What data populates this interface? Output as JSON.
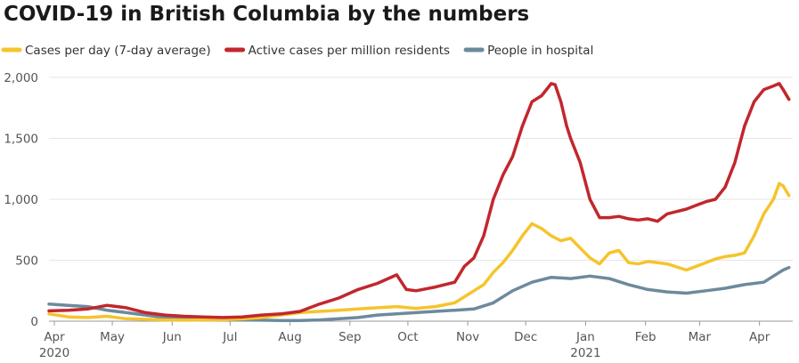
{
  "chart_data": {
    "type": "line",
    "title": "COVID-19 in British Columbia by the numbers",
    "ylim": [
      0,
      2000
    ],
    "y_ticks": [
      0,
      500,
      1000,
      1500,
      2000
    ],
    "y_tick_labels": [
      "0",
      "500",
      "1,000",
      "1,500",
      "2,000"
    ],
    "x_ticks": [
      {
        "label": "Apr",
        "sublabel": "2020",
        "day": 0
      },
      {
        "label": "May",
        "sublabel": "",
        "day": 30
      },
      {
        "label": "Jun",
        "sublabel": "",
        "day": 61
      },
      {
        "label": "Jul",
        "sublabel": "",
        "day": 91
      },
      {
        "label": "Aug",
        "sublabel": "",
        "day": 122
      },
      {
        "label": "Sep",
        "sublabel": "",
        "day": 153
      },
      {
        "label": "Oct",
        "sublabel": "",
        "day": 183
      },
      {
        "label": "Nov",
        "sublabel": "",
        "day": 214
      },
      {
        "label": "Dec",
        "sublabel": "",
        "day": 244
      },
      {
        "label": "Jan",
        "sublabel": "2021",
        "day": 275
      },
      {
        "label": "Feb",
        "sublabel": "",
        "day": 306
      },
      {
        "label": "Mar",
        "sublabel": "",
        "day": 334
      },
      {
        "label": "Apr",
        "sublabel": "",
        "day": 365
      }
    ],
    "x_domain": [
      0,
      385
    ],
    "grid": true,
    "legend_position": "top-left",
    "series": [
      {
        "name": "Cases per day (7-day average)",
        "color": "#f5c42c",
        "x": [
          0,
          10,
          20,
          30,
          40,
          50,
          60,
          70,
          80,
          90,
          100,
          110,
          120,
          130,
          140,
          150,
          160,
          170,
          180,
          190,
          200,
          210,
          220,
          225,
          230,
          235,
          240,
          245,
          250,
          255,
          260,
          265,
          270,
          275,
          280,
          285,
          290,
          295,
          300,
          305,
          310,
          320,
          330,
          335,
          340,
          345,
          350,
          355,
          360,
          365,
          370,
          375,
          378,
          380,
          383
        ],
        "values": [
          60,
          35,
          30,
          40,
          20,
          15,
          10,
          8,
          10,
          12,
          18,
          30,
          50,
          70,
          80,
          90,
          100,
          110,
          120,
          105,
          120,
          150,
          250,
          300,
          400,
          480,
          580,
          700,
          800,
          760,
          700,
          660,
          680,
          600,
          520,
          470,
          560,
          580,
          480,
          470,
          490,
          470,
          420,
          450,
          480,
          510,
          530,
          540,
          560,
          700,
          880,
          1000,
          1130,
          1110,
          1030
        ]
      },
      {
        "name": "Active cases per million residents",
        "color": "#c1272d",
        "x": [
          0,
          10,
          20,
          30,
          40,
          50,
          60,
          70,
          80,
          90,
          100,
          110,
          120,
          130,
          140,
          150,
          160,
          170,
          180,
          185,
          190,
          200,
          210,
          215,
          220,
          225,
          230,
          235,
          240,
          245,
          250,
          255,
          260,
          262,
          265,
          268,
          270,
          275,
          280,
          285,
          290,
          295,
          300,
          305,
          310,
          315,
          320,
          325,
          330,
          335,
          340,
          345,
          350,
          355,
          360,
          365,
          370,
          375,
          378,
          380,
          383
        ],
        "values": [
          85,
          90,
          100,
          130,
          110,
          70,
          50,
          40,
          35,
          30,
          35,
          50,
          60,
          80,
          140,
          190,
          260,
          310,
          380,
          260,
          250,
          280,
          320,
          450,
          520,
          700,
          1000,
          1200,
          1350,
          1600,
          1800,
          1850,
          1950,
          1940,
          1800,
          1600,
          1500,
          1300,
          1000,
          850,
          850,
          860,
          840,
          830,
          840,
          820,
          880,
          900,
          920,
          950,
          980,
          1000,
          1100,
          1300,
          1600,
          1800,
          1900,
          1930,
          1950,
          1900,
          1820
        ]
      },
      {
        "name": "People in hospital",
        "color": "#6d8a9c",
        "x": [
          0,
          10,
          20,
          30,
          40,
          50,
          60,
          70,
          80,
          90,
          100,
          110,
          120,
          130,
          140,
          150,
          160,
          170,
          180,
          190,
          200,
          210,
          220,
          230,
          240,
          250,
          260,
          270,
          280,
          290,
          300,
          310,
          320,
          330,
          340,
          350,
          360,
          370,
          375,
          380,
          383
        ],
        "values": [
          140,
          130,
          120,
          90,
          70,
          50,
          30,
          20,
          15,
          12,
          10,
          8,
          5,
          5,
          10,
          20,
          30,
          50,
          60,
          70,
          80,
          90,
          100,
          150,
          250,
          320,
          360,
          350,
          370,
          350,
          300,
          260,
          240,
          230,
          250,
          270,
          300,
          320,
          370,
          420,
          440
        ]
      }
    ]
  }
}
